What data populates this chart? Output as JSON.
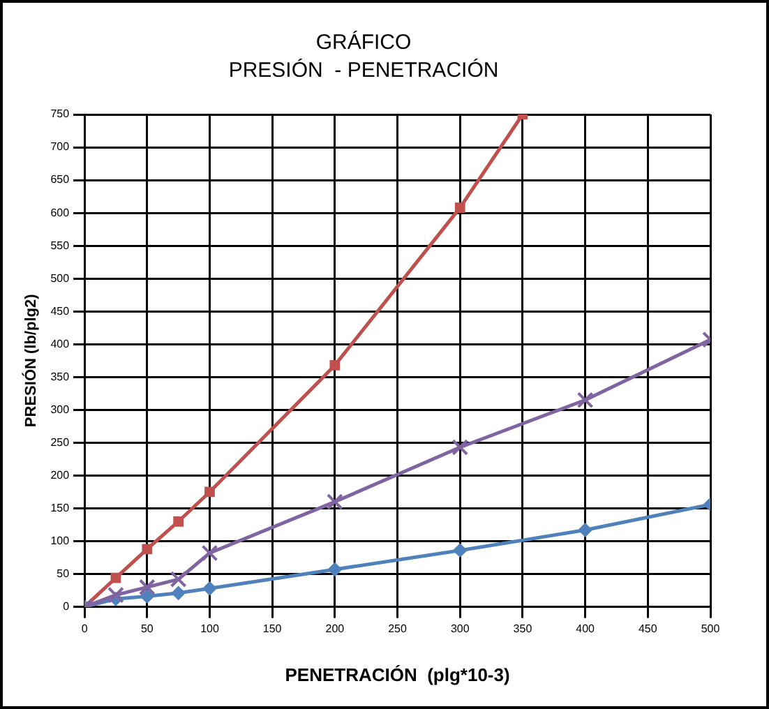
{
  "chart_data": {
    "type": "line",
    "title": "GRÁFICO",
    "subtitle": "PRESIÓN  - PENETRACIÓN",
    "xlabel": "PENETRACIÓN  (plg*10-3)",
    "ylabel": "PRESIÓN (lb/plg2)",
    "x": [
      0,
      25,
      50,
      75,
      100,
      200,
      300,
      400,
      500
    ],
    "series": [
      {
        "color": "#4f81bd",
        "marker": "diamond",
        "values": [
          0,
          12,
          16,
          21,
          28,
          57,
          86,
          117,
          156
        ]
      },
      {
        "color": "#c0504d",
        "marker": "square",
        "x": [
          0,
          25,
          50,
          75,
          100,
          200,
          300,
          350
        ],
        "values": [
          0,
          44,
          88,
          130,
          175,
          368,
          608,
          750
        ]
      },
      {
        "color": "#8064a2",
        "marker": "cross",
        "values": [
          0,
          18,
          30,
          42,
          82,
          160,
          243,
          315,
          407
        ]
      }
    ],
    "xlim": [
      0,
      500
    ],
    "xticks": [
      0,
      50,
      100,
      150,
      200,
      250,
      300,
      350,
      400,
      450,
      500
    ],
    "ylim": [
      0,
      750
    ],
    "yticks": [
      0,
      50,
      100,
      150,
      200,
      250,
      300,
      350,
      400,
      450,
      500,
      550,
      600,
      650,
      700,
      750
    ],
    "grid": true,
    "legend": false
  }
}
